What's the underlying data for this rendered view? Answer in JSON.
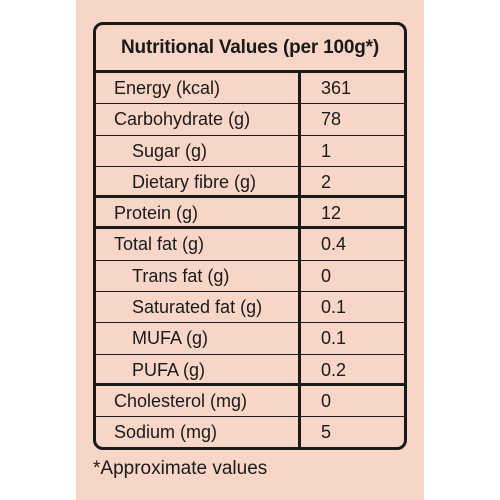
{
  "table": {
    "title": "Nutritional Values (per 100g*)",
    "rows": [
      {
        "name": "Energy (kcal)",
        "value": "361"
      },
      {
        "name": "Carbohydrate (g)",
        "value": "78"
      },
      {
        "name": "Sugar (g)",
        "value": "1"
      },
      {
        "name": "Dietary fibre (g)",
        "value": "2"
      },
      {
        "name": "Protein (g)",
        "value": "12"
      },
      {
        "name": "Total fat (g)",
        "value": "0.4"
      },
      {
        "name": "Trans fat (g)",
        "value": "0"
      },
      {
        "name": "Saturated fat (g)",
        "value": "0.1"
      },
      {
        "name": "MUFA (g)",
        "value": "0.1"
      },
      {
        "name": "PUFA (g)",
        "value": "0.2"
      },
      {
        "name": "Cholesterol (mg)",
        "value": "0"
      },
      {
        "name": "Sodium (mg)",
        "value": "5"
      }
    ]
  },
  "footnote": "*Approximate values",
  "colors": {
    "background": "#f7d6c7",
    "border": "#1a1a1a"
  }
}
